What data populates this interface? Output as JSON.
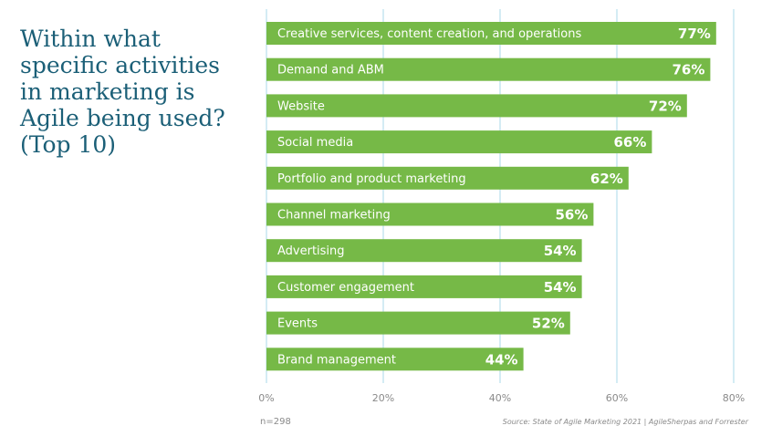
{
  "chart_data": {
    "type": "bar",
    "orientation": "horizontal",
    "title_lines": [
      "Within what",
      "specific activities",
      "in marketing is",
      "Agile being used?",
      "(Top 10)"
    ],
    "categories": [
      "Creative services, content creation, and operations",
      "Demand and ABM",
      "Website",
      "Social media",
      "Portfolio and product marketing",
      "Channel marketing",
      "Advertising",
      "Customer engagement",
      "Events",
      "Brand management"
    ],
    "values": [
      77,
      76,
      72,
      66,
      62,
      56,
      54,
      54,
      52,
      44
    ],
    "value_suffix": "%",
    "xlim": [
      0,
      80
    ],
    "xticks": [
      0,
      20,
      40,
      60,
      80
    ],
    "xtick_labels": [
      "0%",
      "20%",
      "40%",
      "60%",
      "80%"
    ],
    "grid": true,
    "bar_color": "#76b947",
    "grid_color": "#a8d8ea",
    "sample_note": "n=298",
    "source": "Source: State of Agile Marketing 2021 | AgileSherpas and Forrester"
  }
}
